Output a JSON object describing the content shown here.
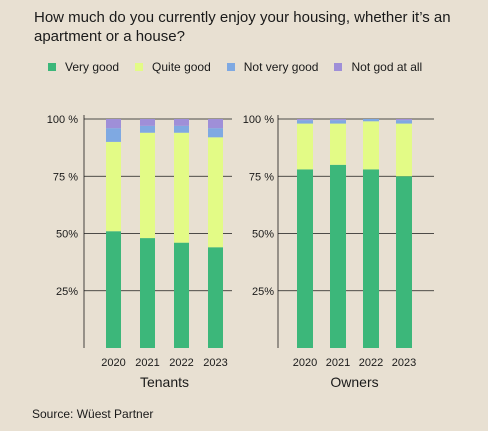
{
  "title": "How much do you currently enjoy your housing, whether it’s an apartment or a house?",
  "source": "Source: Wüest Partner",
  "legend": [
    {
      "label": "Very good",
      "color": "#3cb77a"
    },
    {
      "label": "Quite good",
      "color": "#e3fb86"
    },
    {
      "label": "Not very good",
      "color": "#7fa9e2"
    },
    {
      "label": "Not god at all",
      "color": "#9f8fd8"
    }
  ],
  "chart_data": [
    {
      "type": "bar",
      "stacked": true,
      "xlabel": "Tenants",
      "categories": [
        "2020",
        "2021",
        "2022",
        "2023"
      ],
      "yticks": [
        "25%",
        "50%",
        "75 %",
        "100 %"
      ],
      "ylim": [
        0,
        100
      ],
      "series": [
        {
          "name": "Very good",
          "values": [
            51,
            48,
            46,
            44
          ]
        },
        {
          "name": "Quite good",
          "values": [
            39,
            46,
            48,
            48
          ]
        },
        {
          "name": "Not very good",
          "values": [
            6,
            3,
            3,
            4
          ]
        },
        {
          "name": "Not god at all",
          "values": [
            4,
            3,
            3,
            4
          ]
        }
      ]
    },
    {
      "type": "bar",
      "stacked": true,
      "xlabel": "Owners",
      "categories": [
        "2020",
        "2021",
        "2022",
        "2023"
      ],
      "yticks": [
        "25%",
        "50%",
        "75 %",
        "100 %"
      ],
      "ylim": [
        0,
        100
      ],
      "series": [
        {
          "name": "Very good",
          "values": [
            78,
            80,
            78,
            75
          ]
        },
        {
          "name": "Quite good",
          "values": [
            20,
            18,
            21,
            23
          ]
        },
        {
          "name": "Not very good",
          "values": [
            1.5,
            1.5,
            1,
            1.5
          ]
        },
        {
          "name": "Not god at all",
          "values": [
            0.5,
            0.5,
            0,
            0.5
          ]
        }
      ]
    }
  ]
}
